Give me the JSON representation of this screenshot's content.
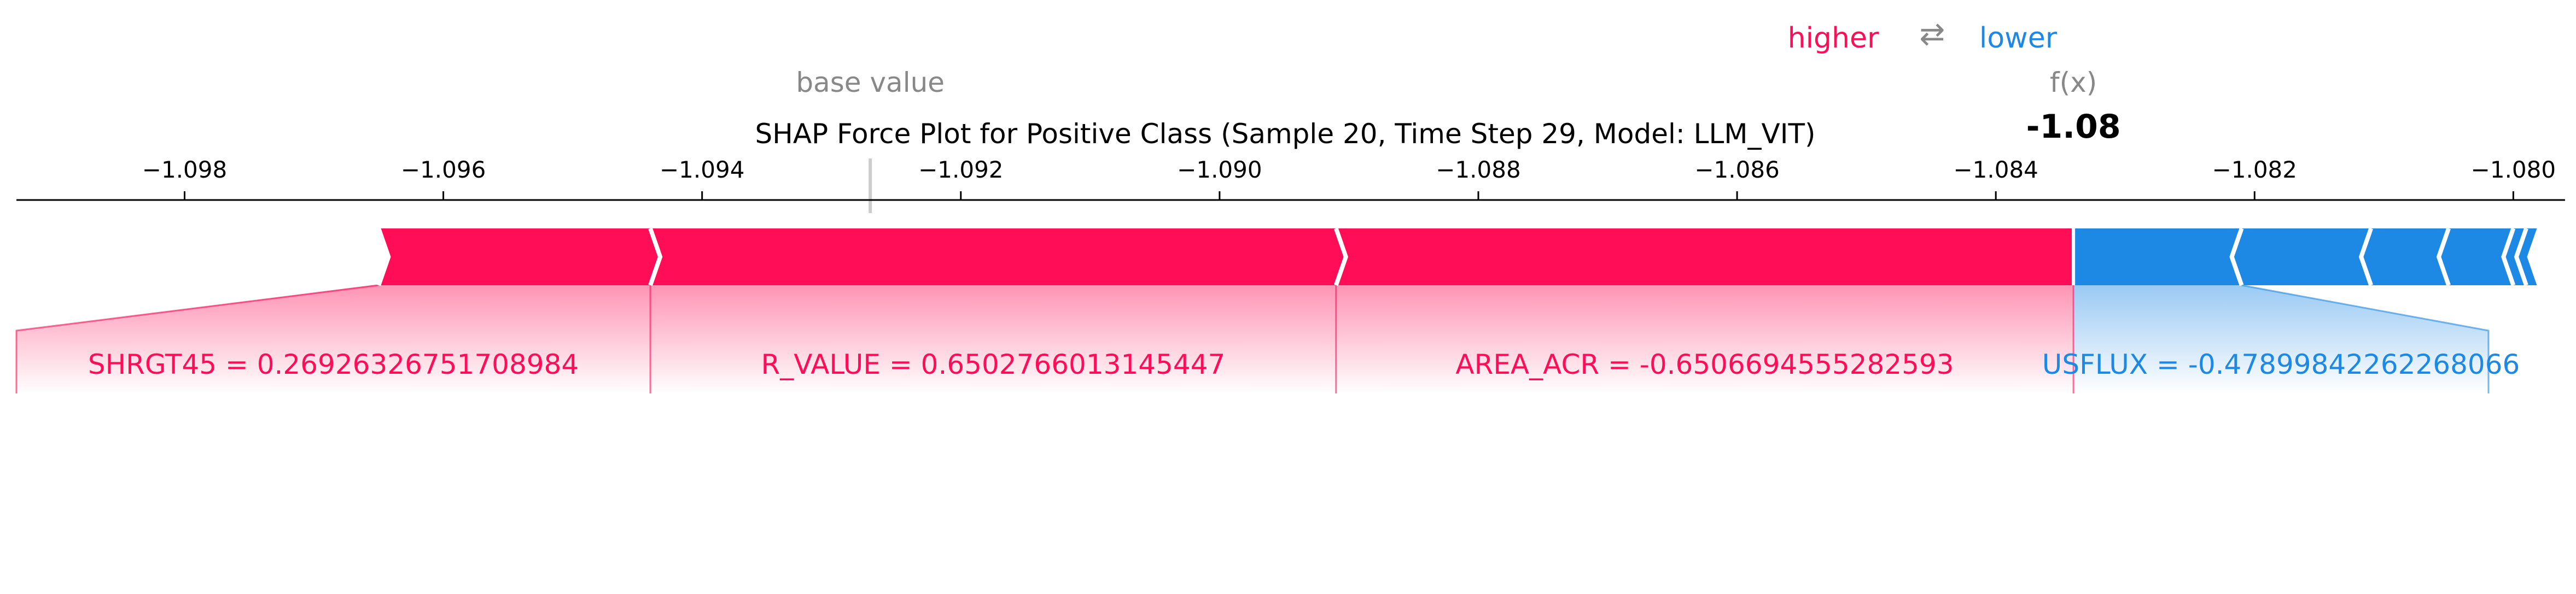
{
  "chart_data": {
    "type": "force",
    "title": "SHAP Force Plot for Positive Class (Sample 20, Time Step 29, Model: LLM_VIT)",
    "legend": {
      "higher": "higher",
      "arrow": "⇄",
      "lower": "lower"
    },
    "base_value_label": "base value",
    "fx_label": "f(x)",
    "output_value": -1.0834,
    "output_text": "-1.08",
    "base_value": -1.0927,
    "xlim": [
      -1.0993,
      -1.0796
    ],
    "ticks": [
      -1.098,
      -1.096,
      -1.094,
      -1.092,
      -1.09,
      -1.088,
      -1.086,
      -1.084,
      -1.082,
      -1.08
    ],
    "tick_labels": [
      "−1.098",
      "−1.096",
      "−1.094",
      "−1.092",
      "−1.090",
      "−1.088",
      "−1.086",
      "−1.084",
      "−1.082",
      "−1.080"
    ],
    "positive_segments": [
      {
        "label": "SHRGT45 = 0.26926326751708984",
        "start": -1.0965,
        "end": -1.0944
      },
      {
        "label": "R_VALUE = 0.6502766013145447",
        "start": -1.0944,
        "end": -1.0891
      },
      {
        "label": "AREA_ACR = -0.6506694555282593",
        "start": -1.0891,
        "end": -1.0834
      }
    ],
    "negative_segments": [
      {
        "label": "USFLUX = -0.47899842262268066",
        "start": -1.0834,
        "end": -1.0821
      },
      {
        "label": "",
        "start": -1.0821,
        "end": -1.0811
      },
      {
        "label": "",
        "start": -1.0811,
        "end": -1.0805
      },
      {
        "label": "",
        "start": -1.0805,
        "end": -1.08
      },
      {
        "label": "",
        "start": -1.08,
        "end": -1.0799
      },
      {
        "label": "",
        "start": -1.0799,
        "end": -1.0798
      }
    ],
    "colors": {
      "positive": "#ff0d57",
      "negative": "#1e88e5",
      "gray": "#888888",
      "axis": "#000000"
    }
  }
}
